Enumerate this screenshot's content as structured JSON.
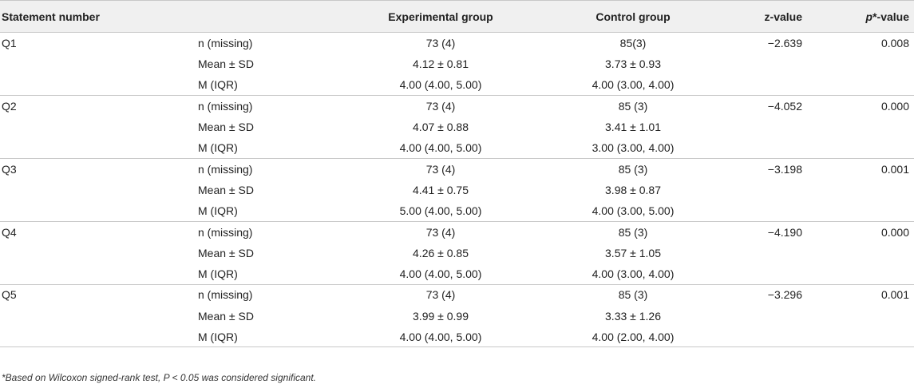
{
  "headers": {
    "statement": "Statement number",
    "metric": "",
    "experimental": "Experimental group",
    "control": "Control group",
    "z": "z-value",
    "p_italic": "p",
    "p_rest": "*-value"
  },
  "groups": [
    {
      "statement": "Q1",
      "z": "−2.639",
      "p": "0.008",
      "rows": [
        {
          "metric": "n (missing)",
          "experimental": "73 (4)",
          "control": "85(3)"
        },
        {
          "metric": "Mean ± SD",
          "experimental": "4.12 ± 0.81",
          "control": "3.73 ± 0.93"
        },
        {
          "metric": "M (IQR)",
          "experimental": "4.00 (4.00, 5.00)",
          "control": "4.00 (3.00, 4.00)"
        }
      ]
    },
    {
      "statement": "Q2",
      "z": "−4.052",
      "p": "0.000",
      "rows": [
        {
          "metric": "n (missing)",
          "experimental": "73 (4)",
          "control": "85 (3)"
        },
        {
          "metric": "Mean ± SD",
          "experimental": "4.07 ± 0.88",
          "control": "3.41 ± 1.01"
        },
        {
          "metric": "M (IQR)",
          "experimental": "4.00 (4.00, 5.00)",
          "control": "3.00 (3.00, 4.00)"
        }
      ]
    },
    {
      "statement": "Q3",
      "z": "−3.198",
      "p": "0.001",
      "rows": [
        {
          "metric": "n (missing)",
          "experimental": "73 (4)",
          "control": "85 (3)"
        },
        {
          "metric": "Mean ± SD",
          "experimental": "4.41 ± 0.75",
          "control": "3.98 ± 0.87"
        },
        {
          "metric": "M (IQR)",
          "experimental": "5.00 (4.00, 5.00)",
          "control": "4.00 (3.00, 5.00)"
        }
      ]
    },
    {
      "statement": "Q4",
      "z": "−4.190",
      "p": "0.000",
      "rows": [
        {
          "metric": "n (missing)",
          "experimental": "73 (4)",
          "control": "85 (3)"
        },
        {
          "metric": "Mean ± SD",
          "experimental": "4.26 ± 0.85",
          "control": "3.57 ± 1.05"
        },
        {
          "metric": "M (IQR)",
          "experimental": "4.00 (4.00, 5.00)",
          "control": "4.00 (3.00, 4.00)"
        }
      ]
    },
    {
      "statement": "Q5",
      "z": "−3.296",
      "p": "0.001",
      "rows": [
        {
          "metric": "n (missing)",
          "experimental": "73 (4)",
          "control": "85 (3)"
        },
        {
          "metric": "Mean ± SD",
          "experimental": "3.99 ± 0.99",
          "control": "3.33 ± 1.26"
        },
        {
          "metric": "M (IQR)",
          "experimental": "4.00 (4.00, 5.00)",
          "control": "4.00 (2.00, 4.00)"
        }
      ]
    }
  ],
  "footnote": "*Based on Wilcoxon signed-rank test, P < 0.05 was considered significant."
}
